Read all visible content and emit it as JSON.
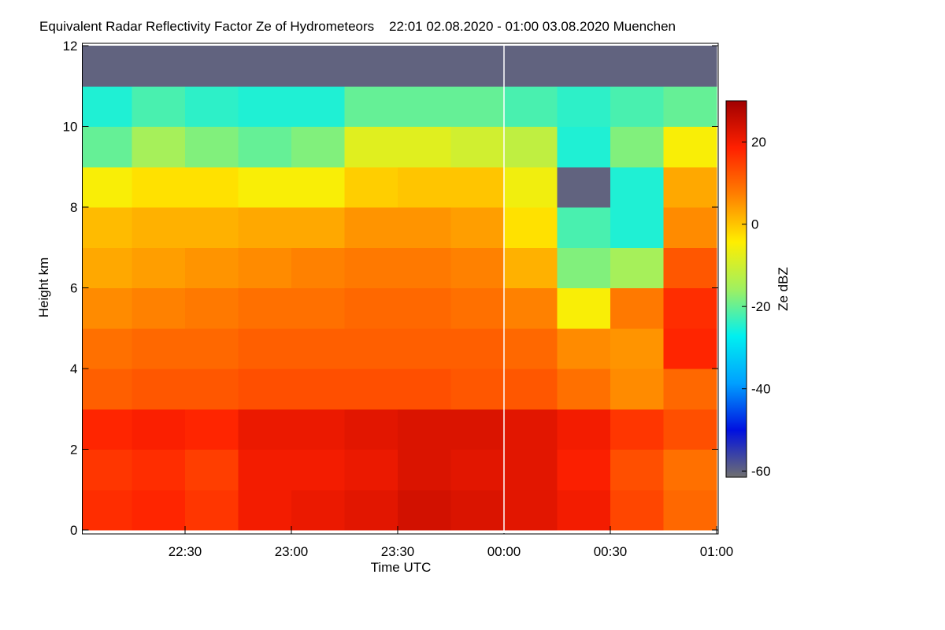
{
  "chart_data": {
    "type": "heatmap",
    "title": "Equivalent Radar Reflectivity Factor Ze of Hydrometeors    22:01 02.08.2020 - 01:00 03.08.2020 Muenchen",
    "xlabel": "Time UTC",
    "ylabel": "Height km",
    "colorbar_label": "Ze dBZ",
    "xlim": [
      1,
      180
    ],
    "xticks": [
      {
        "value": 30,
        "label": "22:30"
      },
      {
        "value": 60,
        "label": "23:00"
      },
      {
        "value": 90,
        "label": "23:30"
      },
      {
        "value": 120,
        "label": "00:00"
      },
      {
        "value": 150,
        "label": "00:30"
      },
      {
        "value": 180,
        "label": "01:00"
      }
    ],
    "ylim": [
      0,
      12
    ],
    "yticks": [
      0,
      2,
      4,
      6,
      8,
      10,
      12
    ],
    "zlim": [
      -61.5,
      30
    ],
    "zticks": [
      20,
      0,
      -20,
      -40,
      -60
    ],
    "colors": [
      "#707070",
      "#0010e0",
      "#00a0ff",
      "#00f0f0",
      "#a0f060",
      "#ffee00",
      "#ff8000",
      "#ff2000",
      "#a00000"
    ],
    "xbins": [
      1,
      15,
      30,
      45,
      60,
      75,
      90,
      105,
      120,
      135,
      150,
      165,
      180
    ],
    "ybins": [
      0,
      1,
      2,
      3,
      4,
      5,
      6,
      7,
      8,
      9,
      10,
      11,
      12
    ],
    "z": [
      [
        17,
        18,
        16,
        20,
        21,
        22,
        24,
        23,
        22,
        20,
        14,
        10
      ],
      [
        16,
        17,
        15,
        20,
        20,
        21,
        23,
        22,
        22,
        19,
        13,
        9
      ],
      [
        18,
        19,
        18,
        21,
        21,
        22,
        23,
        23,
        22,
        20,
        16,
        13
      ],
      [
        11,
        12,
        12,
        13,
        13,
        13,
        13,
        12,
        12,
        9,
        6,
        10
      ],
      [
        9,
        10,
        10,
        11,
        11,
        11,
        11,
        11,
        10,
        6,
        5,
        18
      ],
      [
        6,
        7,
        8,
        9,
        9,
        10,
        10,
        9,
        7,
        -5,
        8,
        17
      ],
      [
        3,
        4,
        5,
        6,
        7,
        8,
        8,
        7,
        2,
        -18,
        -15,
        12
      ],
      [
        1,
        2,
        2,
        3,
        3,
        5,
        5,
        4,
        -3,
        -22,
        -25,
        6
      ],
      [
        -5,
        -3,
        -3,
        -5,
        -5,
        -1,
        0,
        0,
        -6,
        -60,
        -25,
        3
      ],
      [
        -20,
        -15,
        -18,
        -20,
        -18,
        -8,
        -8,
        -10,
        -12,
        -25,
        -18,
        -5
      ],
      [
        -25,
        -22,
        -24,
        -25,
        -25,
        -20,
        -20,
        -20,
        -22,
        -24,
        -22,
        -20
      ],
      [
        -60,
        -60,
        -60,
        -60,
        -60,
        -60,
        -60,
        -60,
        -60,
        -60,
        -60,
        -60
      ]
    ]
  }
}
